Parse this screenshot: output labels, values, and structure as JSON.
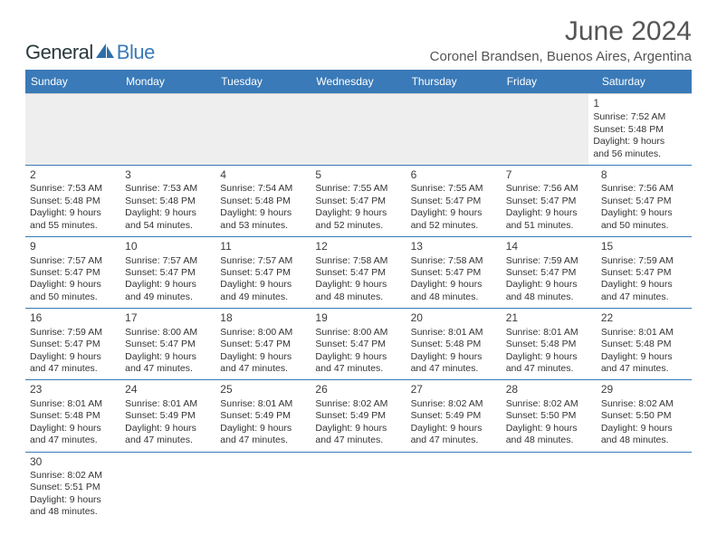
{
  "brand": {
    "word1": "General",
    "word2": "Blue"
  },
  "title": "June 2024",
  "location": "Coronel Brandsen, Buenos Aires, Argentina",
  "colors": {
    "header_bg": "#3a7ab8",
    "header_text": "#ffffff",
    "rule": "#3a7ab8",
    "empty_bg": "#eeeeee",
    "body_text": "#333333",
    "title_text": "#555555"
  },
  "daynames": [
    "Sunday",
    "Monday",
    "Tuesday",
    "Wednesday",
    "Thursday",
    "Friday",
    "Saturday"
  ],
  "weeks": [
    [
      {
        "empty": true
      },
      {
        "empty": true
      },
      {
        "empty": true
      },
      {
        "empty": true
      },
      {
        "empty": true
      },
      {
        "empty": true
      },
      {
        "n": "1",
        "sunrise": "Sunrise: 7:52 AM",
        "sunset": "Sunset: 5:48 PM",
        "day1": "Daylight: 9 hours",
        "day2": "and 56 minutes."
      }
    ],
    [
      {
        "n": "2",
        "sunrise": "Sunrise: 7:53 AM",
        "sunset": "Sunset: 5:48 PM",
        "day1": "Daylight: 9 hours",
        "day2": "and 55 minutes."
      },
      {
        "n": "3",
        "sunrise": "Sunrise: 7:53 AM",
        "sunset": "Sunset: 5:48 PM",
        "day1": "Daylight: 9 hours",
        "day2": "and 54 minutes."
      },
      {
        "n": "4",
        "sunrise": "Sunrise: 7:54 AM",
        "sunset": "Sunset: 5:48 PM",
        "day1": "Daylight: 9 hours",
        "day2": "and 53 minutes."
      },
      {
        "n": "5",
        "sunrise": "Sunrise: 7:55 AM",
        "sunset": "Sunset: 5:47 PM",
        "day1": "Daylight: 9 hours",
        "day2": "and 52 minutes."
      },
      {
        "n": "6",
        "sunrise": "Sunrise: 7:55 AM",
        "sunset": "Sunset: 5:47 PM",
        "day1": "Daylight: 9 hours",
        "day2": "and 52 minutes."
      },
      {
        "n": "7",
        "sunrise": "Sunrise: 7:56 AM",
        "sunset": "Sunset: 5:47 PM",
        "day1": "Daylight: 9 hours",
        "day2": "and 51 minutes."
      },
      {
        "n": "8",
        "sunrise": "Sunrise: 7:56 AM",
        "sunset": "Sunset: 5:47 PM",
        "day1": "Daylight: 9 hours",
        "day2": "and 50 minutes."
      }
    ],
    [
      {
        "n": "9",
        "sunrise": "Sunrise: 7:57 AM",
        "sunset": "Sunset: 5:47 PM",
        "day1": "Daylight: 9 hours",
        "day2": "and 50 minutes."
      },
      {
        "n": "10",
        "sunrise": "Sunrise: 7:57 AM",
        "sunset": "Sunset: 5:47 PM",
        "day1": "Daylight: 9 hours",
        "day2": "and 49 minutes."
      },
      {
        "n": "11",
        "sunrise": "Sunrise: 7:57 AM",
        "sunset": "Sunset: 5:47 PM",
        "day1": "Daylight: 9 hours",
        "day2": "and 49 minutes."
      },
      {
        "n": "12",
        "sunrise": "Sunrise: 7:58 AM",
        "sunset": "Sunset: 5:47 PM",
        "day1": "Daylight: 9 hours",
        "day2": "and 48 minutes."
      },
      {
        "n": "13",
        "sunrise": "Sunrise: 7:58 AM",
        "sunset": "Sunset: 5:47 PM",
        "day1": "Daylight: 9 hours",
        "day2": "and 48 minutes."
      },
      {
        "n": "14",
        "sunrise": "Sunrise: 7:59 AM",
        "sunset": "Sunset: 5:47 PM",
        "day1": "Daylight: 9 hours",
        "day2": "and 48 minutes."
      },
      {
        "n": "15",
        "sunrise": "Sunrise: 7:59 AM",
        "sunset": "Sunset: 5:47 PM",
        "day1": "Daylight: 9 hours",
        "day2": "and 47 minutes."
      }
    ],
    [
      {
        "n": "16",
        "sunrise": "Sunrise: 7:59 AM",
        "sunset": "Sunset: 5:47 PM",
        "day1": "Daylight: 9 hours",
        "day2": "and 47 minutes."
      },
      {
        "n": "17",
        "sunrise": "Sunrise: 8:00 AM",
        "sunset": "Sunset: 5:47 PM",
        "day1": "Daylight: 9 hours",
        "day2": "and 47 minutes."
      },
      {
        "n": "18",
        "sunrise": "Sunrise: 8:00 AM",
        "sunset": "Sunset: 5:47 PM",
        "day1": "Daylight: 9 hours",
        "day2": "and 47 minutes."
      },
      {
        "n": "19",
        "sunrise": "Sunrise: 8:00 AM",
        "sunset": "Sunset: 5:47 PM",
        "day1": "Daylight: 9 hours",
        "day2": "and 47 minutes."
      },
      {
        "n": "20",
        "sunrise": "Sunrise: 8:01 AM",
        "sunset": "Sunset: 5:48 PM",
        "day1": "Daylight: 9 hours",
        "day2": "and 47 minutes."
      },
      {
        "n": "21",
        "sunrise": "Sunrise: 8:01 AM",
        "sunset": "Sunset: 5:48 PM",
        "day1": "Daylight: 9 hours",
        "day2": "and 47 minutes."
      },
      {
        "n": "22",
        "sunrise": "Sunrise: 8:01 AM",
        "sunset": "Sunset: 5:48 PM",
        "day1": "Daylight: 9 hours",
        "day2": "and 47 minutes."
      }
    ],
    [
      {
        "n": "23",
        "sunrise": "Sunrise: 8:01 AM",
        "sunset": "Sunset: 5:48 PM",
        "day1": "Daylight: 9 hours",
        "day2": "and 47 minutes."
      },
      {
        "n": "24",
        "sunrise": "Sunrise: 8:01 AM",
        "sunset": "Sunset: 5:49 PM",
        "day1": "Daylight: 9 hours",
        "day2": "and 47 minutes."
      },
      {
        "n": "25",
        "sunrise": "Sunrise: 8:01 AM",
        "sunset": "Sunset: 5:49 PM",
        "day1": "Daylight: 9 hours",
        "day2": "and 47 minutes."
      },
      {
        "n": "26",
        "sunrise": "Sunrise: 8:02 AM",
        "sunset": "Sunset: 5:49 PM",
        "day1": "Daylight: 9 hours",
        "day2": "and 47 minutes."
      },
      {
        "n": "27",
        "sunrise": "Sunrise: 8:02 AM",
        "sunset": "Sunset: 5:49 PM",
        "day1": "Daylight: 9 hours",
        "day2": "and 47 minutes."
      },
      {
        "n": "28",
        "sunrise": "Sunrise: 8:02 AM",
        "sunset": "Sunset: 5:50 PM",
        "day1": "Daylight: 9 hours",
        "day2": "and 48 minutes."
      },
      {
        "n": "29",
        "sunrise": "Sunrise: 8:02 AM",
        "sunset": "Sunset: 5:50 PM",
        "day1": "Daylight: 9 hours",
        "day2": "and 48 minutes."
      }
    ],
    [
      {
        "n": "30",
        "sunrise": "Sunrise: 8:02 AM",
        "sunset": "Sunset: 5:51 PM",
        "day1": "Daylight: 9 hours",
        "day2": "and 48 minutes."
      },
      {
        "empty": true,
        "blank": true
      },
      {
        "empty": true,
        "blank": true
      },
      {
        "empty": true,
        "blank": true
      },
      {
        "empty": true,
        "blank": true
      },
      {
        "empty": true,
        "blank": true
      },
      {
        "empty": true,
        "blank": true
      }
    ]
  ]
}
